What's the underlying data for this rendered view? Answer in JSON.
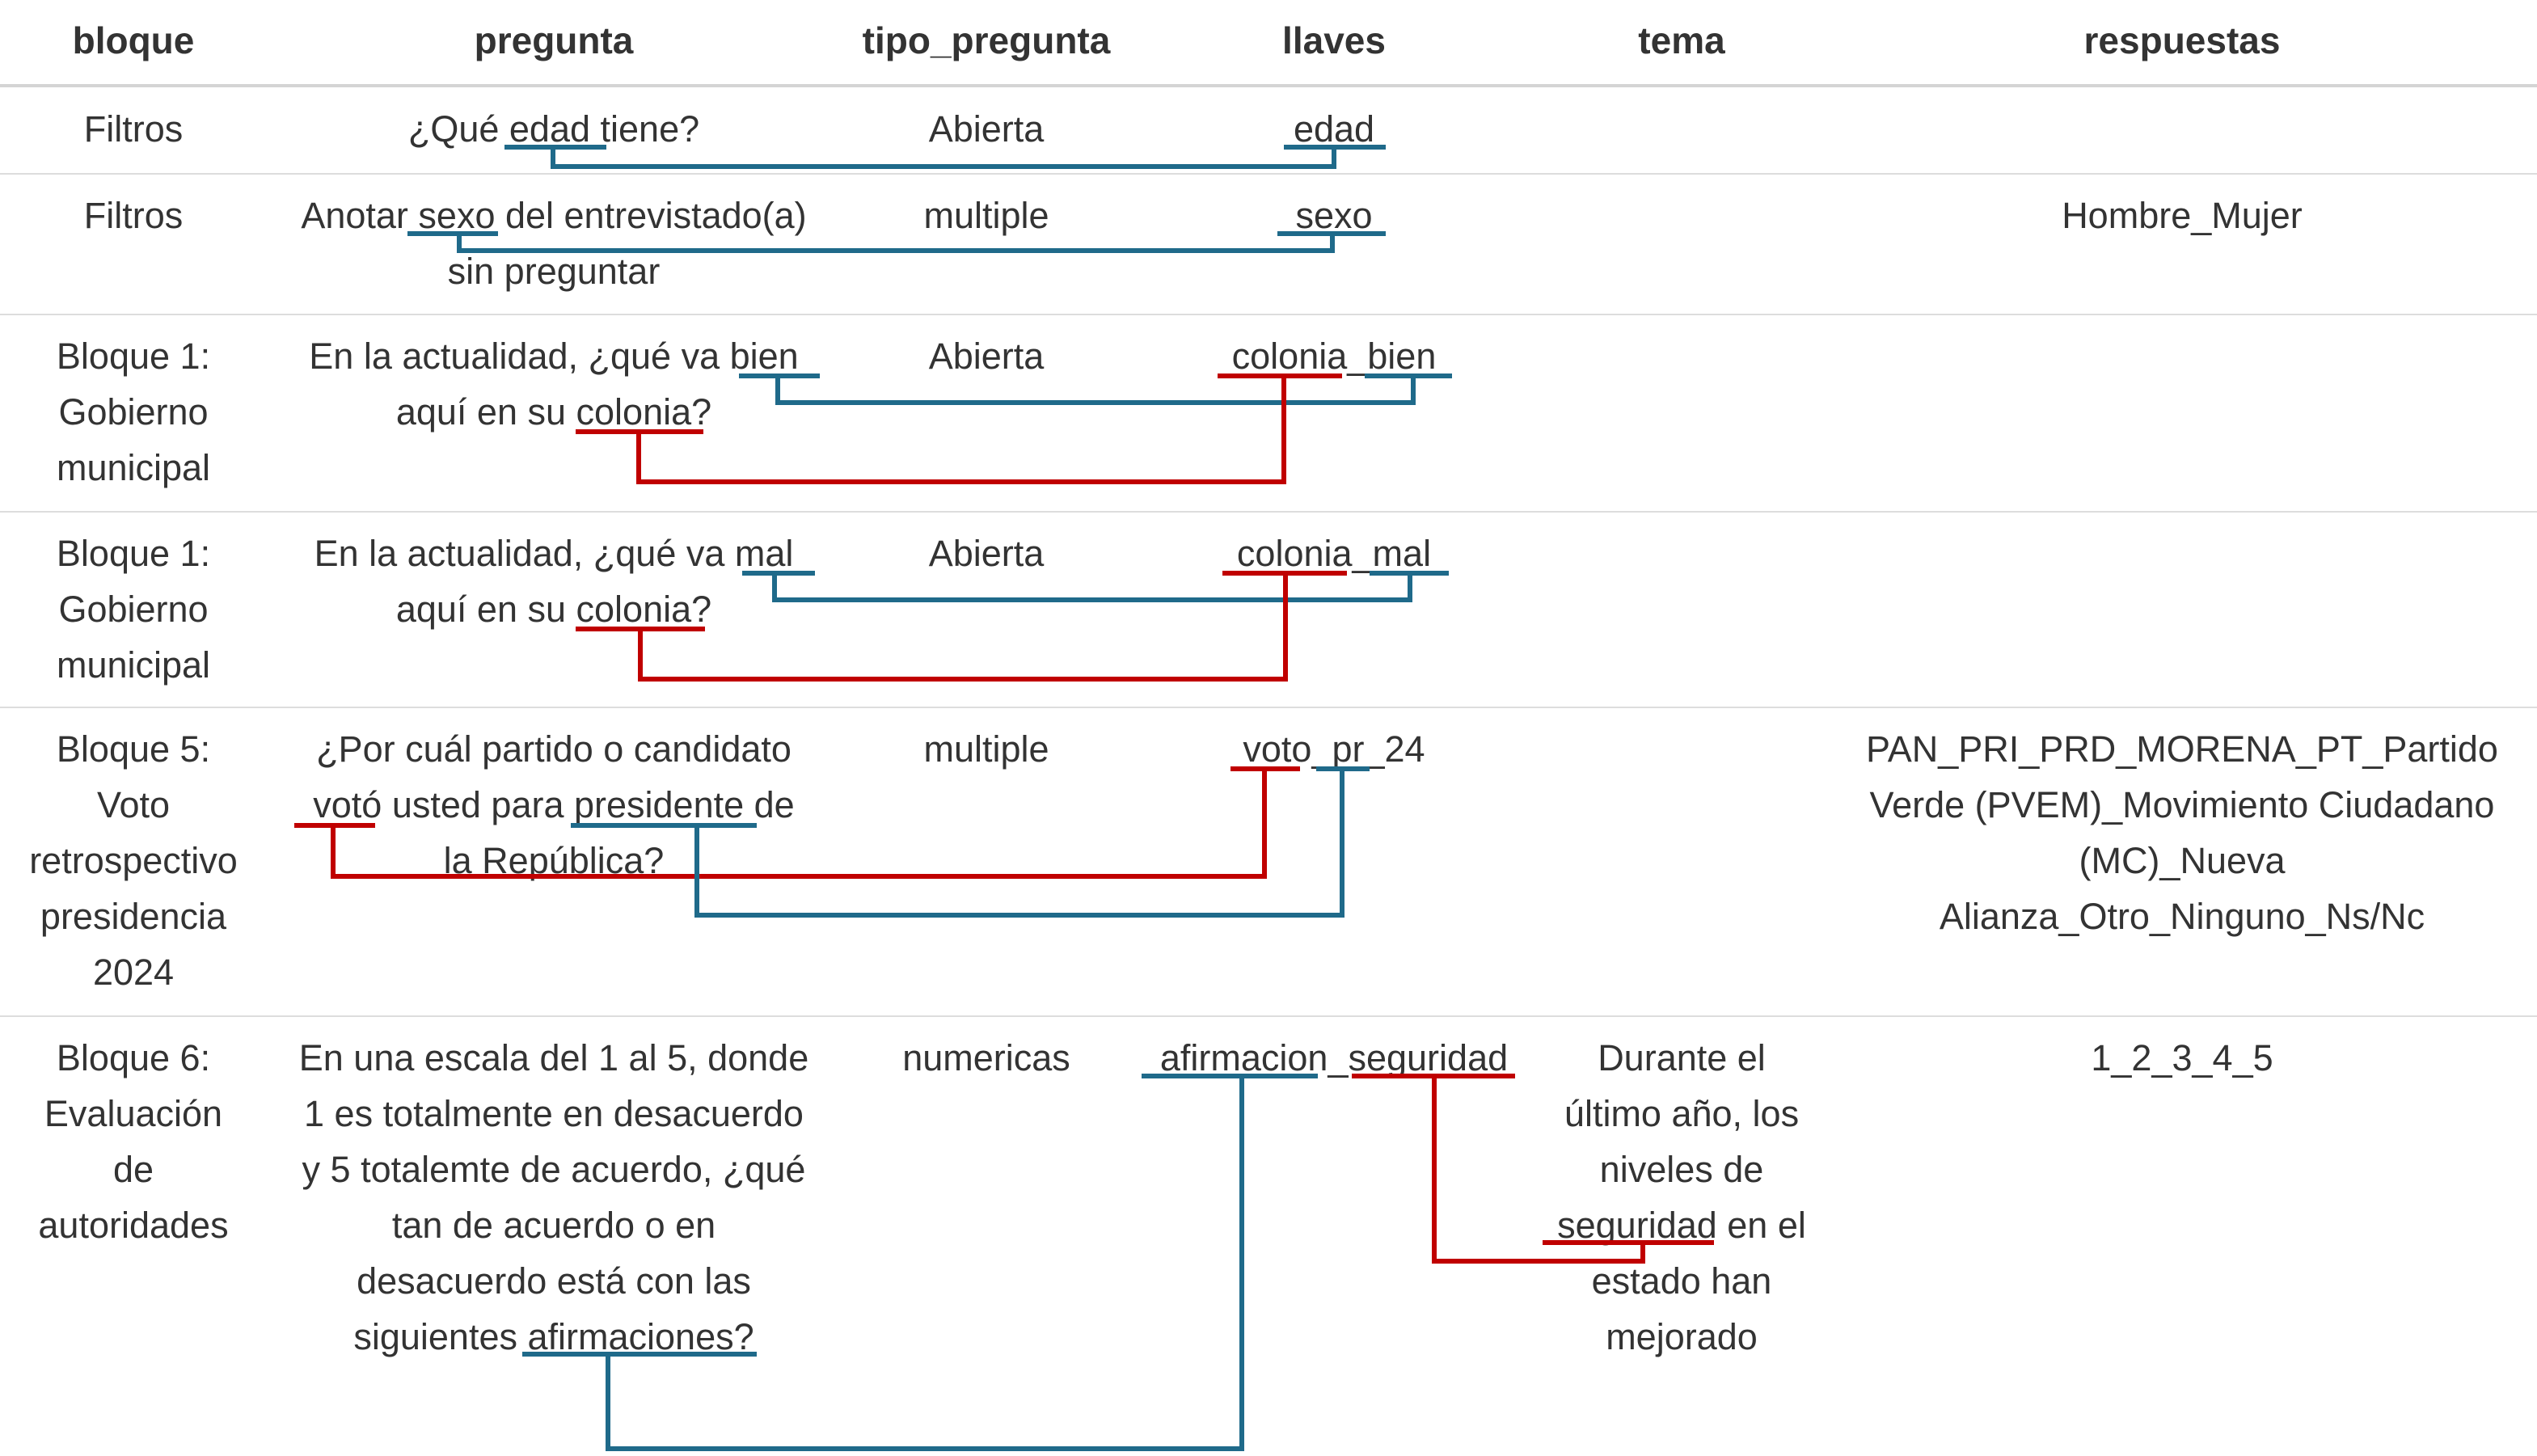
{
  "columns": {
    "bloque": "bloque",
    "pregunta": "pregunta",
    "tipo_pregunta": "tipo_pregunta",
    "llaves": "llaves",
    "tema": "tema",
    "respuestas": "respuestas"
  },
  "rows": [
    {
      "bloque": "Filtros",
      "pregunta_lines": [
        "¿Qué edad tiene?"
      ],
      "tipo_pregunta": "Abierta",
      "llaves": "edad",
      "tema_lines": [],
      "respuestas_lines": []
    },
    {
      "bloque": "Filtros",
      "pregunta_lines": [
        "Anotar sexo del entrevistado(a)",
        "sin preguntar"
      ],
      "tipo_pregunta": "multiple",
      "llaves": "sexo",
      "tema_lines": [],
      "respuestas_lines": [
        "Hombre_Mujer"
      ]
    },
    {
      "bloque_lines": [
        "Bloque 1:",
        "Gobierno",
        "municipal"
      ],
      "pregunta_lines": [
        "En la actualidad, ¿qué va bien",
        "aquí en su colonia?"
      ],
      "tipo_pregunta": "Abierta",
      "llaves": "colonia_bien",
      "tema_lines": [],
      "respuestas_lines": []
    },
    {
      "bloque_lines": [
        "Bloque 1:",
        "Gobierno",
        "municipal"
      ],
      "pregunta_lines": [
        "En la actualidad, ¿qué va mal",
        "aquí en su colonia?"
      ],
      "tipo_pregunta": "Abierta",
      "llaves": "colonia_mal",
      "tema_lines": [],
      "respuestas_lines": []
    },
    {
      "bloque_lines": [
        "Bloque 5:",
        "Voto",
        "retrospectivo",
        "presidencia",
        "2024"
      ],
      "pregunta_lines": [
        "¿Por cuál partido o candidato",
        "votó usted para presidente de",
        "la República?"
      ],
      "tipo_pregunta": "multiple",
      "llaves": "voto_pr_24",
      "tema_lines": [],
      "respuestas_lines": [
        "PAN_PRI_PRD_MORENA_PT_Partido",
        "Verde (PVEM)_Movimiento Ciudadano",
        "(MC)_Nueva",
        "Alianza_Otro_Ninguno_Ns/Nc"
      ]
    },
    {
      "bloque_lines": [
        "Bloque 6:",
        "Evaluación",
        "de",
        "autoridades"
      ],
      "pregunta_lines": [
        "En una escala del 1 al 5, donde",
        "1 es totalmente en desacuerdo",
        "y 5 totalemte de acuerdo, ¿qué",
        "tan de acuerdo o en",
        "desacuerdo está con las",
        "siguientes afirmaciones?"
      ],
      "tipo_pregunta": "numericas",
      "llaves": "afirmacion_seguridad",
      "tema_lines": [
        "Durante el",
        "último año, los",
        "niveles de",
        "seguridad en el",
        "estado han",
        "mejorado"
      ],
      "respuestas_lines": [
        "1_2_3_4_5"
      ]
    }
  ],
  "colors": {
    "blue_link": "#1f6a8a",
    "red_link": "#c00000",
    "text": "#333333",
    "rule": "#dddddd"
  }
}
